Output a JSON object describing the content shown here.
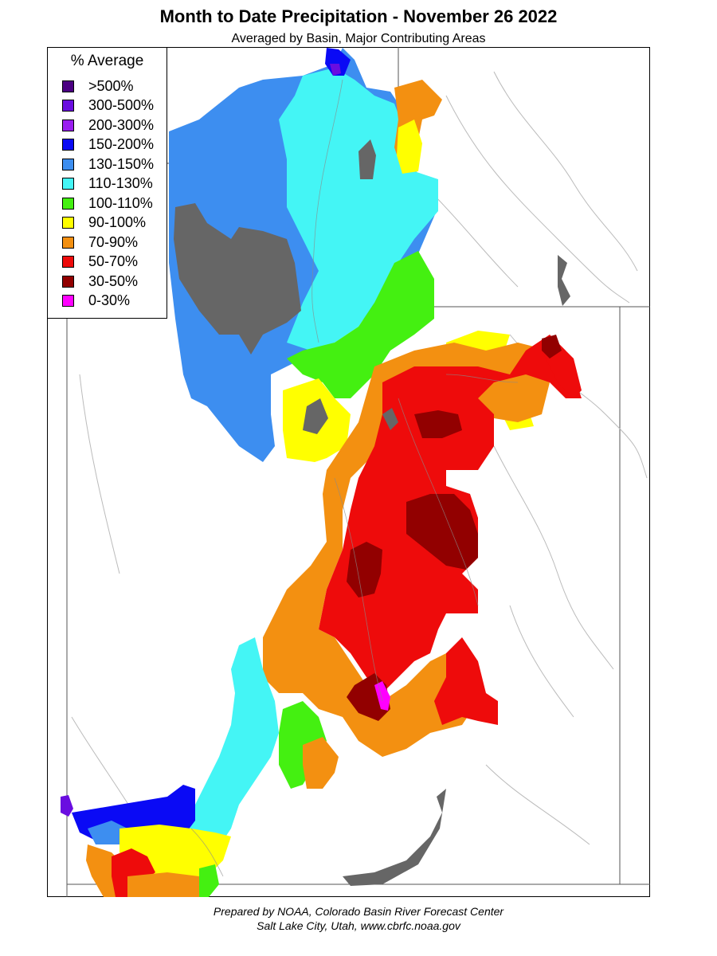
{
  "title": "Month to Date Precipitation - November 26 2022",
  "subtitle": "Averaged by Basin, Major Contributing Areas",
  "legend": {
    "title": "% Average",
    "items": [
      {
        "label": ">500%",
        "color": "#4b0082"
      },
      {
        "label": "300-500%",
        "color": "#6a0de0"
      },
      {
        "label": "200-300%",
        "color": "#9a1ef0"
      },
      {
        "label": "150-200%",
        "color": "#0a0af5"
      },
      {
        "label": "130-150%",
        "color": "#3d8ef0"
      },
      {
        "label": "110-130%",
        "color": "#44f5f5"
      },
      {
        "label": "100-110%",
        "color": "#44f011"
      },
      {
        "label": "90-100%",
        "color": "#ffff00"
      },
      {
        "label": "70-90%",
        "color": "#f39011"
      },
      {
        "label": "50-70%",
        "color": "#ee0b0b"
      },
      {
        "label": "30-50%",
        "color": "#920000"
      },
      {
        "label": "0-30%",
        "color": "#ff00ff"
      }
    ]
  },
  "map_colors": {
    "water": "#666666",
    "boundary": "#555555",
    "stream": "#aaaaaa"
  },
  "footer": {
    "line1": "Prepared by NOAA, Colorado Basin River Forecast Center",
    "line2": "Salt Lake City, Utah, www.cbrfc.noaa.gov"
  }
}
